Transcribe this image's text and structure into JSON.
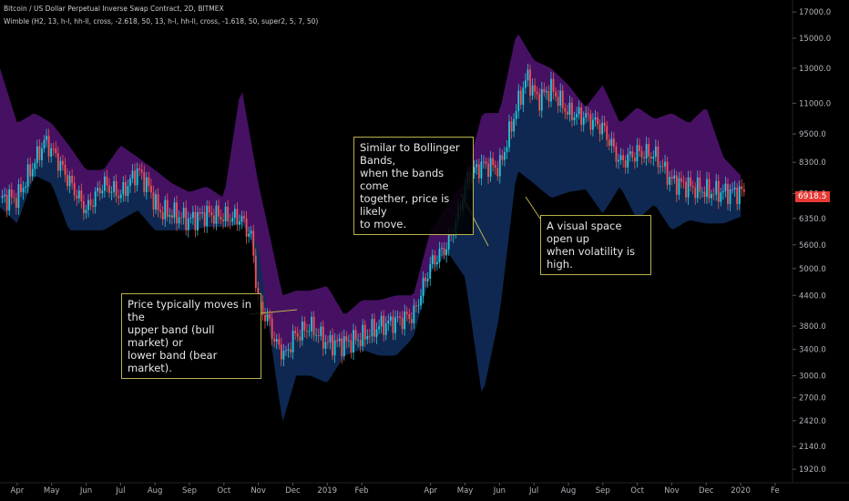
{
  "header": {
    "title": "Bitcoin / US Dollar Perpetual Inverse Swap Contract, 2D, BITMEX",
    "indicator": "Wimble (H2, 13, h-l, hh-ll, cross, -2.618, 50, 13, h-l, hh-ll, cross, -1.618, 50, super2, 5, 7, 50)"
  },
  "price_label": "6918.5",
  "colors": {
    "upper_band": "#4a1268",
    "lower_band": "#102a55",
    "candle_up": "#26c6da",
    "candle_down": "#ef5350",
    "callout_border": "#b9b24b",
    "price_box": "#e53935"
  },
  "annotations": {
    "left": "Price typically moves in the\nupper band (bull market) or\nlower band (bear market).",
    "middle": "Similar to Bollinger Bands,\nwhen the bands come\ntogether, price is likely\nto move.",
    "right": "A visual space open up\nwhen volatility is high."
  },
  "chart_data": {
    "type": "line",
    "scale": "log",
    "y_ticks": [
      1920,
      2140,
      2420,
      2700,
      3000,
      3400,
      3800,
      4400,
      5000,
      5600,
      6350,
      7150,
      8300,
      9500,
      11000,
      13000,
      15000,
      17000
    ],
    "y_tick_labels": [
      "1920.0",
      "2140.0",
      "2420.0",
      "2700.0",
      "3000.0",
      "3400.0",
      "3800.0",
      "4400.0",
      "5000.0",
      "5600.0",
      "6350.0",
      "7150.0",
      "8300.0",
      "9500.0",
      "11000.0",
      "13000.0",
      "15000.0",
      "17000.0"
    ],
    "ylim": [
      1800,
      18000
    ],
    "x_labels": [
      "Apr",
      "May",
      "Jun",
      "Jul",
      "Aug",
      "Sep",
      "Oct",
      "Nov",
      "Dec",
      "2019",
      "Feb",
      "Apr",
      "May",
      "Jun",
      "Jul",
      "Aug",
      "Sep",
      "Oct",
      "Nov",
      "Dec",
      "2020",
      "Fe"
    ],
    "x_ticks": [
      0.5,
      1.5,
      2.5,
      3.5,
      4.5,
      5.5,
      6.5,
      7.5,
      8.5,
      9.5,
      10.5,
      12.5,
      13.5,
      14.5,
      15.5,
      16.5,
      17.5,
      18.5,
      19.5,
      20.5,
      21.5,
      22.5
    ],
    "xlim": [
      0,
      22.9
    ],
    "series": [
      {
        "name": "Price",
        "x": [
          0,
          0.5,
          1,
          1.3,
          1.6,
          2,
          2.5,
          3,
          3.5,
          4,
          4.3,
          4.6,
          5,
          5.5,
          6,
          6.5,
          7,
          7.3,
          7.5,
          7.8,
          8,
          8.3,
          8.5,
          9,
          9.5,
          10,
          10.5,
          11,
          11.5,
          12,
          12.5,
          13,
          13.3,
          13.6,
          14,
          14.5,
          15,
          15.3,
          15.6,
          16,
          16.5,
          17,
          17.5,
          18,
          18.5,
          19,
          19.5,
          20,
          20.3,
          20.6,
          21,
          21.3,
          21.6
        ],
        "values": [
          7000,
          7000,
          8300,
          9200,
          8600,
          7600,
          6600,
          7500,
          7100,
          8000,
          7400,
          6600,
          6500,
          6300,
          6500,
          6400,
          6350,
          5800,
          4200,
          3900,
          3500,
          3300,
          3600,
          3800,
          3500,
          3500,
          3600,
          3800,
          3900,
          4000,
          5100,
          5600,
          6500,
          7800,
          8200,
          8100,
          10800,
          12500,
          11200,
          11800,
          10500,
          10300,
          9800,
          8300,
          8700,
          8600,
          7600,
          7400,
          7300,
          7200,
          7200,
          7200,
          7200
        ]
      },
      {
        "name": "Upper band",
        "x": [
          0,
          0.5,
          1,
          1.5,
          2,
          2.5,
          3,
          3.5,
          4,
          4.5,
          5,
          5.5,
          6,
          6.5,
          7,
          7.5,
          7.8,
          8.2,
          8.6,
          9,
          9.5,
          10,
          10.5,
          11,
          11.5,
          12,
          12.5,
          13,
          13.5,
          14,
          14.5,
          15,
          15.5,
          16,
          16.5,
          17,
          17.5,
          18,
          18.5,
          19,
          19.5,
          20,
          20.5,
          21,
          21.5
        ],
        "values": [
          13000,
          10000,
          10500,
          10000,
          9000,
          8000,
          8000,
          9000,
          8500,
          8000,
          7500,
          7200,
          7400,
          7000,
          12000,
          7500,
          6000,
          4400,
          4500,
          4500,
          4600,
          4000,
          4300,
          4300,
          4400,
          4400,
          6000,
          6800,
          7600,
          10500,
          10500,
          15500,
          13500,
          13000,
          12000,
          10800,
          12000,
          10000,
          10800,
          10200,
          10500,
          10000,
          10800,
          8500,
          7800
        ]
      },
      {
        "name": "Lower band",
        "x": [
          0,
          0.5,
          1,
          1.5,
          2,
          2.5,
          3,
          3.5,
          4,
          4.5,
          5,
          5.5,
          6,
          6.5,
          7,
          7.5,
          7.8,
          8.2,
          8.6,
          9,
          9.5,
          10,
          10.5,
          11,
          11.5,
          12,
          12.5,
          13,
          13.5,
          14,
          14.5,
          15,
          15.5,
          16,
          16.5,
          17,
          17.5,
          18,
          18.5,
          19,
          19.5,
          20,
          20.5,
          21,
          21.5
        ],
        "values": [
          6700,
          6200,
          7800,
          7500,
          6000,
          6000,
          6000,
          6300,
          6600,
          6000,
          6000,
          6000,
          6100,
          6100,
          6200,
          5600,
          3800,
          2400,
          3000,
          3000,
          2900,
          3300,
          3400,
          3300,
          3300,
          3600,
          4900,
          5400,
          4800,
          2700,
          4000,
          8000,
          7500,
          7000,
          7200,
          7300,
          6500,
          7400,
          6300,
          6800,
          6000,
          6300,
          6200,
          6200,
          6400
        ]
      }
    ]
  }
}
